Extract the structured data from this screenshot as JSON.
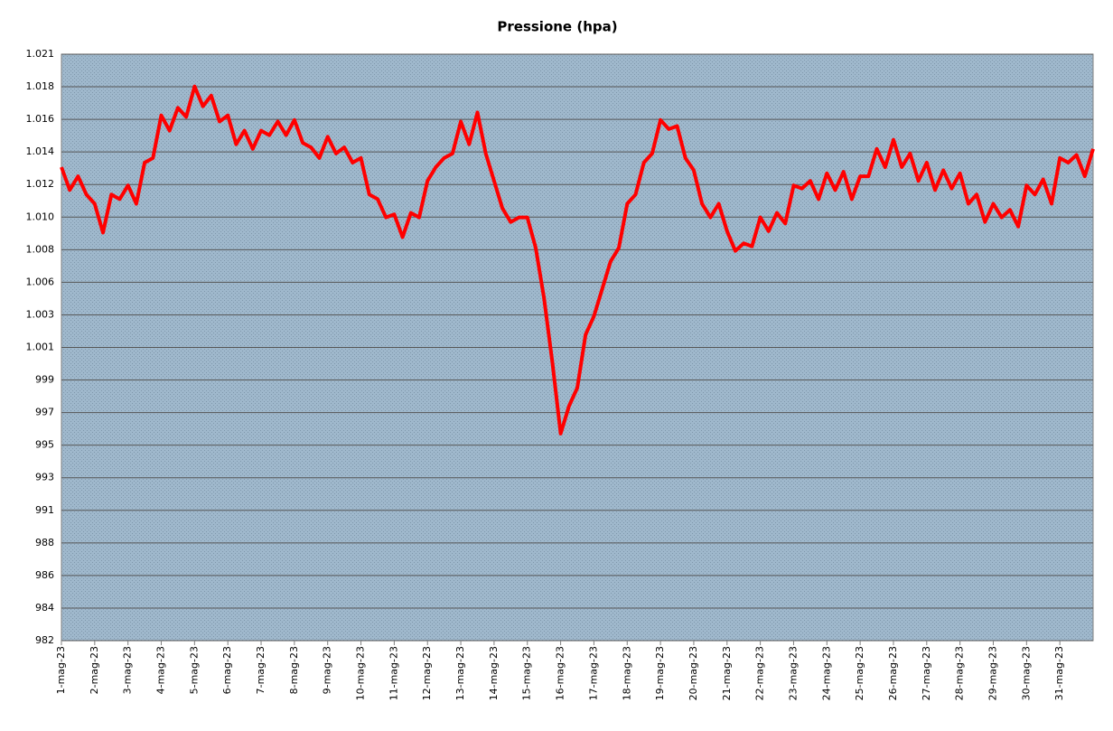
{
  "chart_data": {
    "type": "line",
    "title": "Pressione (hpa)",
    "categories": [
      "1-mag-23",
      null,
      null,
      null,
      "2-mag-23",
      null,
      null,
      null,
      "3-mag-23",
      null,
      null,
      null,
      "4-mag-23",
      null,
      null,
      null,
      "5-mag-23",
      null,
      null,
      null,
      "6-mag-23",
      null,
      null,
      null,
      "7-mag-23",
      null,
      null,
      null,
      "8-mag-23",
      null,
      null,
      null,
      "9-mag-23",
      null,
      null,
      null,
      "10-mag-23",
      null,
      null,
      null,
      "11-mag-23",
      null,
      null,
      null,
      "12-mag-23",
      null,
      null,
      null,
      "13-mag-23",
      null,
      null,
      null,
      "14-mag-23",
      null,
      null,
      null,
      "15-mag-23",
      null,
      null,
      null,
      "16-mag-23",
      null,
      null,
      null,
      "17-mag-23",
      null,
      null,
      null,
      "18-mag-23",
      null,
      null,
      null,
      "19-mag-23",
      null,
      null,
      null,
      "20-mag-23",
      null,
      null,
      null,
      "21-mag-23",
      null,
      null,
      null,
      "22-mag-23",
      null,
      null,
      null,
      "23-mag-23",
      null,
      null,
      null,
      "24-mag-23",
      null,
      null,
      null,
      "25-mag-23",
      null,
      null,
      null,
      "26-mag-23",
      null,
      null,
      null,
      "27-mag-23",
      null,
      null,
      null,
      "28-mag-23",
      null,
      null,
      null,
      "29-mag-23",
      null,
      null,
      null,
      "30-mag-23",
      null,
      null,
      null,
      "31-mag-23",
      null,
      null,
      null,
      null
    ],
    "values": [
      1013.1,
      1011.6,
      1012.5,
      1011.3,
      1010.7,
      1008.8,
      1011.3,
      1011.0,
      1011.9,
      1010.7,
      1013.4,
      1013.7,
      1016.5,
      1015.5,
      1017.0,
      1016.4,
      1018.4,
      1017.1,
      1017.8,
      1016.1,
      1016.5,
      1014.6,
      1015.5,
      1014.3,
      1015.5,
      1015.2,
      1016.1,
      1015.2,
      1016.2,
      1014.7,
      1014.4,
      1013.7,
      1015.1,
      1014.0,
      1014.4,
      1013.4,
      1013.7,
      1011.3,
      1011.0,
      1009.8,
      1010.0,
      1008.5,
      1010.1,
      1009.8,
      1012.2,
      1013.1,
      1013.7,
      1014.0,
      1016.1,
      1014.6,
      1016.7,
      1014.0,
      1012.2,
      1010.4,
      1009.5,
      1009.8,
      1009.8,
      1007.8,
      1004.5,
      1000.3,
      995.6,
      997.4,
      998.6,
      1002.1,
      1003.3,
      1005.1,
      1006.9,
      1007.8,
      1010.7,
      1011.3,
      1013.4,
      1014.0,
      1016.2,
      1015.6,
      1015.8,
      1013.7,
      1012.9,
      1010.7,
      1009.8,
      1010.7,
      1008.9,
      1007.6,
      1008.1,
      1007.9,
      1009.8,
      1008.9,
      1010.1,
      1009.4,
      1011.9,
      1011.7,
      1012.2,
      1011.0,
      1012.7,
      1011.6,
      1012.8,
      1011.0,
      1012.5,
      1012.5,
      1014.3,
      1013.1,
      1014.9,
      1013.1,
      1014.0,
      1012.2,
      1013.4,
      1011.6,
      1012.9,
      1011.7,
      1012.7,
      1010.7,
      1011.3,
      1009.5,
      1010.7,
      1009.8,
      1010.3,
      1009.2,
      1011.9,
      1011.3,
      1012.3,
      1010.7,
      1013.7,
      1013.4,
      1013.9,
      1012.5,
      1014.3
    ],
    "color": "#ff0000",
    "ylim": [
      982,
      1020.52
    ],
    "yticks": [
      982,
      {
        "value": 984.14,
        "label": "984"
      },
      {
        "value": 986.28,
        "label": "986"
      },
      {
        "value": 988.42,
        "label": "988"
      },
      {
        "value": 990.56,
        "label": "991"
      },
      {
        "value": 992.7,
        "label": "993"
      },
      {
        "value": 994.84,
        "label": "995"
      },
      {
        "value": 996.98,
        "label": "997"
      },
      {
        "value": 999.12,
        "label": "999"
      },
      {
        "value": 1001.26,
        "label": "1.001"
      },
      {
        "value": 1003.4,
        "label": "1.003"
      },
      {
        "value": 1005.54,
        "label": "1.006"
      },
      {
        "value": 1007.68,
        "label": "1.008"
      },
      {
        "value": 1009.82,
        "label": "1.010"
      },
      {
        "value": 1011.96,
        "label": "1.012"
      },
      {
        "value": 1014.1,
        "label": "1.014"
      },
      {
        "value": 1016.24,
        "label": "1.016"
      },
      {
        "value": 1018.38,
        "label": "1.018"
      },
      {
        "value": 1020.52,
        "label": "1.021"
      }
    ],
    "grid": true
  }
}
